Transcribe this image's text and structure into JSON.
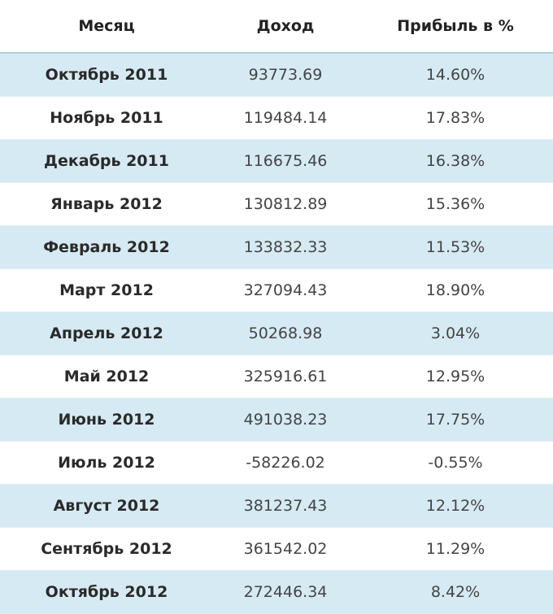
{
  "table": {
    "header": [
      "Месяц",
      "Доход",
      "Прибыль в %"
    ],
    "rows": [
      [
        "Октябрь 2011",
        "93773.69",
        "14.60%"
      ],
      [
        "Ноябрь 2011",
        "119484.14",
        "17.83%"
      ],
      [
        "Декабрь 2011",
        "116675.46",
        "16.38%"
      ],
      [
        "Январь 2012",
        "130812.89",
        "15.36%"
      ],
      [
        "Февраль 2012",
        "133832.33",
        "11.53%"
      ],
      [
        "Март 2012",
        "327094.43",
        "18.90%"
      ],
      [
        "Апрель 2012",
        "50268.98",
        "3.04%"
      ],
      [
        "Май 2012",
        "325916.61",
        "12.95%"
      ],
      [
        "Июнь 2012",
        "491038.23",
        "17.75%"
      ],
      [
        "Июль 2012",
        "-58226.02",
        "-0.55%"
      ],
      [
        "Август 2012",
        "381237.43",
        "12.12%"
      ],
      [
        "Сентябрь 2012",
        "361542.02",
        "11.29%"
      ],
      [
        "Октябрь 2012",
        "272446.34",
        "8.42%"
      ]
    ]
  }
}
